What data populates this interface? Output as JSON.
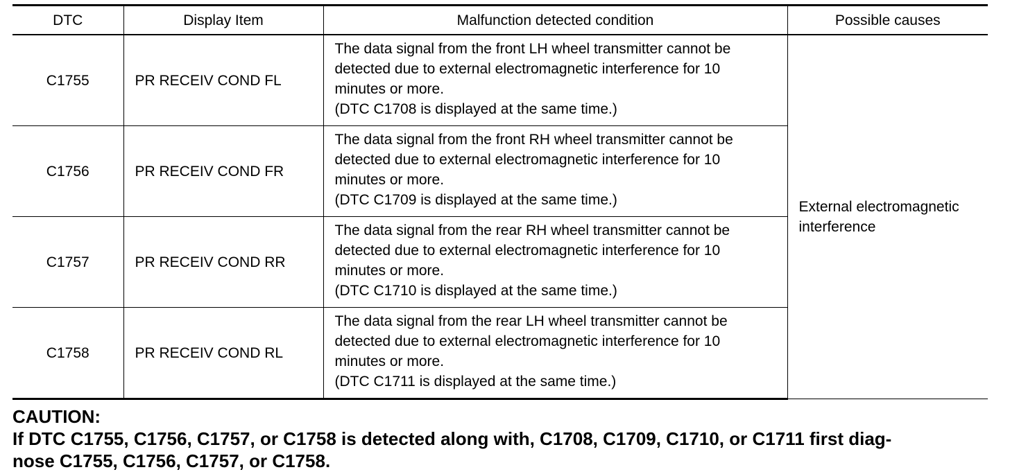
{
  "table": {
    "headers": [
      "DTC",
      "Display Item",
      "Malfunction detected condition",
      "Possible causes"
    ],
    "rows": [
      {
        "dtc": "C1755",
        "display_item": "PR RECEIV COND FL",
        "condition_lines": [
          "The data signal from the front LH wheel transmitter cannot be",
          "detected due to external electromagnetic interference for 10",
          "minutes or more.",
          "(DTC C1708 is displayed at the same time.)"
        ]
      },
      {
        "dtc": "C1756",
        "display_item": "PR RECEIV COND FR",
        "condition_lines": [
          "The data signal from the front RH wheel transmitter cannot be",
          "detected due to external electromagnetic interference for 10",
          "minutes or more.",
          "(DTC C1709 is displayed at the same time.)"
        ]
      },
      {
        "dtc": "C1757",
        "display_item": "PR RECEIV COND RR",
        "condition_lines": [
          "The data signal from the rear RH wheel transmitter cannot be",
          "detected due to external electromagnetic interference for 10",
          "minutes or more.",
          "(DTC C1710 is displayed at the same time.)"
        ]
      },
      {
        "dtc": "C1758",
        "display_item": "PR RECEIV COND RL",
        "condition_lines": [
          "The data signal from the rear LH wheel transmitter cannot be",
          "detected due to external electromagnetic interference for 10",
          "minutes or more.",
          "(DTC C1711 is displayed at the same time.)"
        ]
      }
    ],
    "possible_causes_lines": [
      "External electromagnetic",
      "interference"
    ]
  },
  "caution": {
    "title": "CAUTION:",
    "text_lines": [
      "If DTC C1755, C1756, C1757, or C1758 is detected along with, C1708, C1709, C1710, or C1711 first diag-",
      "nose C1755, C1756, C1757, or C1758."
    ]
  }
}
